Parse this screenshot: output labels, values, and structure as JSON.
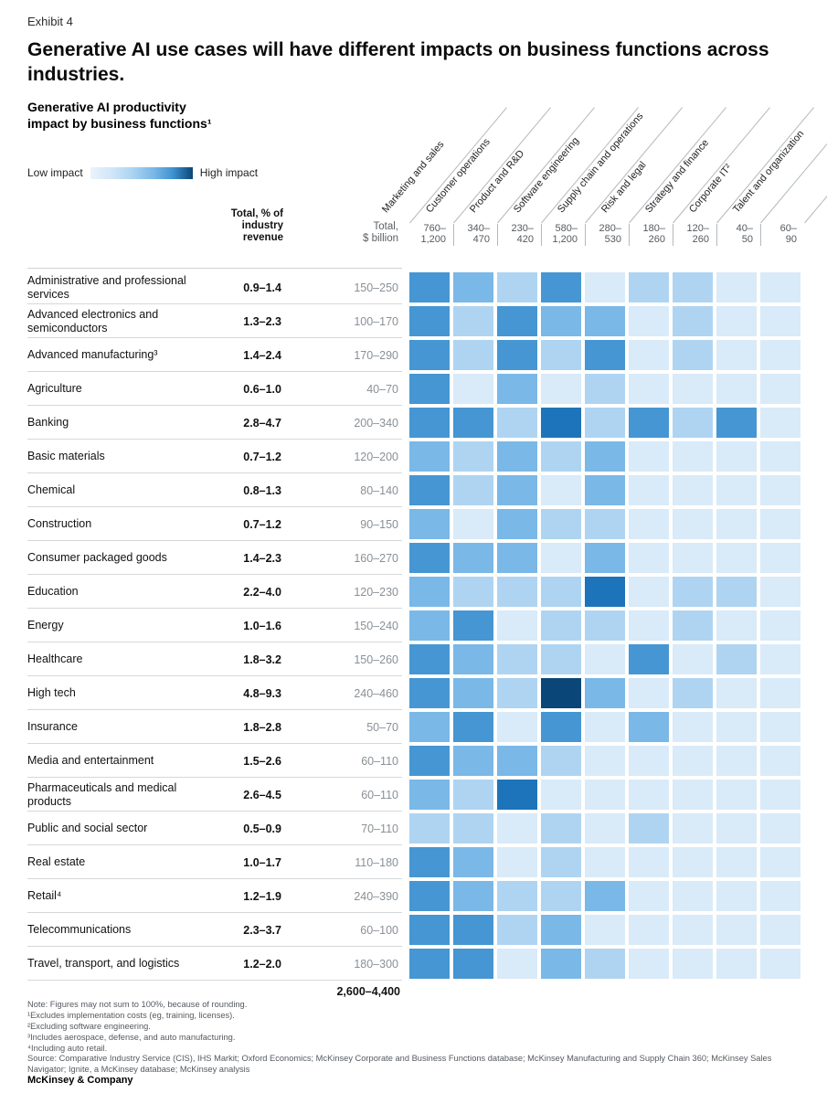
{
  "exhibit_label": "Exhibit 4",
  "title": "Generative AI use cases will have different impacts on business functions across industries.",
  "subtitle": "Generative AI productivity\nimpact by business functions¹",
  "legend": {
    "low": "Low impact",
    "high": "High impact"
  },
  "table": {
    "pct_header": "Total, % of\nindustry\nrevenue",
    "total_header": "Total,\n$ billion"
  },
  "chart_data": {
    "type": "heatmap",
    "title": "Generative AI productivity impact by business functions",
    "value_scale": "impact level, 1 = low impact to 6 = high impact (color intensity)",
    "functions": [
      {
        "name": "Marketing and sales",
        "range": "760–1,200"
      },
      {
        "name": "Customer operations",
        "range": "340–470"
      },
      {
        "name": "Product and R&D",
        "range": "230–420"
      },
      {
        "name": "Software engineering",
        "range": "580–1,200"
      },
      {
        "name": "Supply chain and operations",
        "range": "280–530"
      },
      {
        "name": "Risk and legal",
        "range": "180–260"
      },
      {
        "name": "Strategy and finance",
        "range": "120–260"
      },
      {
        "name": "Corporate IT²",
        "range": "40–50"
      },
      {
        "name": "Talent and organization",
        "range": "60–90"
      }
    ],
    "industries": [
      {
        "name": "Administrative and professional services",
        "revenue_pct": "0.9–1.4",
        "total_billion": "150–250",
        "impact": [
          4,
          3,
          2,
          4,
          1,
          2,
          2,
          1,
          1
        ]
      },
      {
        "name": "Advanced electronics and semiconductors",
        "revenue_pct": "1.3–2.3",
        "total_billion": "100–170",
        "impact": [
          4,
          2,
          4,
          3,
          3,
          1,
          2,
          1,
          1
        ]
      },
      {
        "name": "Advanced manufacturing³",
        "revenue_pct": "1.4–2.4",
        "total_billion": "170–290",
        "impact": [
          4,
          2,
          4,
          2,
          4,
          1,
          2,
          1,
          1
        ]
      },
      {
        "name": "Agriculture",
        "revenue_pct": "0.6–1.0",
        "total_billion": "40–70",
        "impact": [
          4,
          1,
          3,
          1,
          2,
          1,
          1,
          1,
          1
        ]
      },
      {
        "name": "Banking",
        "revenue_pct": "2.8–4.7",
        "total_billion": "200–340",
        "impact": [
          4,
          4,
          2,
          5,
          2,
          4,
          2,
          4,
          1
        ]
      },
      {
        "name": "Basic materials",
        "revenue_pct": "0.7–1.2",
        "total_billion": "120–200",
        "impact": [
          3,
          2,
          3,
          2,
          3,
          1,
          1,
          1,
          1
        ]
      },
      {
        "name": "Chemical",
        "revenue_pct": "0.8–1.3",
        "total_billion": "80–140",
        "impact": [
          4,
          2,
          3,
          1,
          3,
          1,
          1,
          1,
          1
        ]
      },
      {
        "name": "Construction",
        "revenue_pct": "0.7–1.2",
        "total_billion": "90–150",
        "impact": [
          3,
          1,
          3,
          2,
          2,
          1,
          1,
          1,
          1
        ]
      },
      {
        "name": "Consumer packaged goods",
        "revenue_pct": "1.4–2.3",
        "total_billion": "160–270",
        "impact": [
          4,
          3,
          3,
          1,
          3,
          1,
          1,
          1,
          1
        ]
      },
      {
        "name": "Education",
        "revenue_pct": "2.2–4.0",
        "total_billion": "120–230",
        "impact": [
          3,
          2,
          2,
          2,
          5,
          1,
          2,
          2,
          1
        ]
      },
      {
        "name": "Energy",
        "revenue_pct": "1.0–1.6",
        "total_billion": "150–240",
        "impact": [
          3,
          4,
          1,
          2,
          2,
          1,
          2,
          1,
          1
        ]
      },
      {
        "name": "Healthcare",
        "revenue_pct": "1.8–3.2",
        "total_billion": "150–260",
        "impact": [
          4,
          3,
          2,
          2,
          1,
          4,
          1,
          2,
          1
        ]
      },
      {
        "name": "High tech",
        "revenue_pct": "4.8–9.3",
        "total_billion": "240–460",
        "impact": [
          4,
          3,
          2,
          6,
          3,
          1,
          2,
          1,
          1
        ]
      },
      {
        "name": "Insurance",
        "revenue_pct": "1.8–2.8",
        "total_billion": "50–70",
        "impact": [
          3,
          4,
          1,
          4,
          1,
          3,
          1,
          1,
          1
        ]
      },
      {
        "name": "Media and entertainment",
        "revenue_pct": "1.5–2.6",
        "total_billion": "60–110",
        "impact": [
          4,
          3,
          3,
          2,
          1,
          1,
          1,
          1,
          1
        ]
      },
      {
        "name": "Pharmaceuticals and medical products",
        "revenue_pct": "2.6–4.5",
        "total_billion": "60–110",
        "impact": [
          3,
          2,
          5,
          1,
          1,
          1,
          1,
          1,
          1
        ]
      },
      {
        "name": "Public and social sector",
        "revenue_pct": "0.5–0.9",
        "total_billion": "70–110",
        "impact": [
          2,
          2,
          1,
          2,
          1,
          2,
          1,
          1,
          1
        ]
      },
      {
        "name": "Real estate",
        "revenue_pct": "1.0–1.7",
        "total_billion": "110–180",
        "impact": [
          4,
          3,
          1,
          2,
          1,
          1,
          1,
          1,
          1
        ]
      },
      {
        "name": "Retail⁴",
        "revenue_pct": "1.2–1.9",
        "total_billion": "240–390",
        "impact": [
          4,
          3,
          2,
          2,
          3,
          1,
          1,
          1,
          1
        ]
      },
      {
        "name": "Telecommunications",
        "revenue_pct": "2.3–3.7",
        "total_billion": "60–100",
        "impact": [
          4,
          4,
          2,
          3,
          1,
          1,
          1,
          1,
          1
        ]
      },
      {
        "name": "Travel, transport, and logistics",
        "revenue_pct": "1.2–2.0",
        "total_billion": "180–300",
        "impact": [
          4,
          4,
          1,
          3,
          2,
          1,
          1,
          1,
          1
        ]
      }
    ],
    "grand_total": "2,600–4,400",
    "scale": {
      "low_label": "Low impact",
      "high_label": "High impact",
      "palette": [
        "#d9eaf8",
        "#aed4f2",
        "#7ab8e8",
        "#4596d3",
        "#1d74ba",
        "#0a4678"
      ]
    },
    "legend_position": "top-left",
    "grid": false
  },
  "footnotes": [
    "Note: Figures may not sum to 100%, because of rounding.",
    "¹Excludes implementation costs (eg, training, licenses).",
    "²Excluding software engineering.",
    "³Includes aerospace, defense, and auto manufacturing.",
    "⁴Including auto retail.",
    "Source: Comparative Industry Service (CIS), IHS Markit; Oxford Economics; McKinsey Corporate and Business Functions database; McKinsey Manufacturing and Supply Chain 360; McKinsey Sales Navigator; Ignite, a McKinsey database; McKinsey analysis"
  ],
  "brand": "McKinsey & Company"
}
